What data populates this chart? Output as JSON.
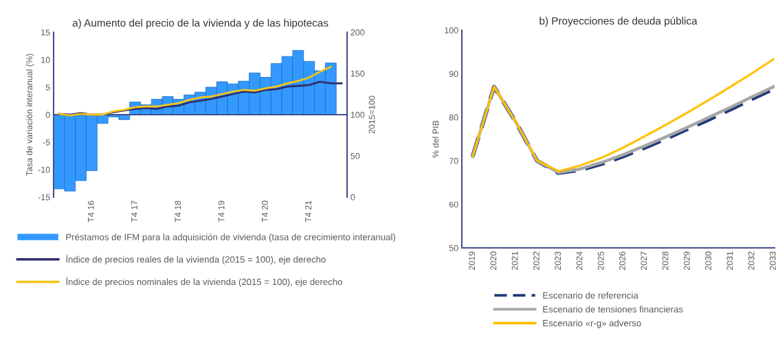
{
  "chart_data": [
    {
      "type": "bar",
      "title": "a) Aumento del precio de la vivienda y de las hipotecas",
      "ylabel": "Tasa de variación interanual (%)",
      "y2label": "2015=100",
      "categories": [
        null,
        null,
        null,
        "T4 16",
        null,
        null,
        null,
        "T4 17",
        null,
        null,
        null,
        "T4 18",
        null,
        null,
        null,
        "T4 19",
        null,
        null,
        null,
        "T4 20",
        null,
        null,
        null,
        "T4 21",
        null,
        null,
        null
      ],
      "series": [
        {
          "name": "Préstamos de IFM para la adquisición de vivienda (tasa de crecimiento interanual)",
          "type": "bar",
          "color": "#3399ff",
          "values": [
            -13.5,
            -13.9,
            -12.0,
            -10.2,
            -1.6,
            -0.4,
            -0.9,
            2.3,
            1.8,
            2.8,
            3.3,
            2.8,
            3.6,
            4.1,
            5.0,
            6.0,
            5.6,
            6.1,
            7.6,
            6.8,
            9.3,
            10.6,
            11.7,
            9.7,
            8.0,
            9.4,
            null
          ]
        },
        {
          "name": "Índice de precios reales de la vivienda (2015 = 100), eje derecho",
          "type": "line",
          "axis": "y2",
          "color": "#2e2e6e",
          "values": [
            101,
            100,
            102,
            100,
            100,
            103,
            105,
            107,
            108,
            107,
            110,
            111,
            115,
            117,
            119,
            122,
            125,
            128,
            127,
            130,
            131,
            134,
            135,
            136,
            140,
            138,
            138
          ]
        },
        {
          "name": "Índice de precios nominales de la vivienda (2015 = 100), eje derecho",
          "type": "line",
          "axis": "y2",
          "color": "#f5c518",
          "values": [
            101,
            99,
            101,
            100,
            100,
            104,
            106,
            109,
            110,
            110,
            112,
            114,
            118,
            121,
            122,
            125,
            128,
            130,
            129,
            132,
            134,
            138,
            141,
            145,
            152,
            158,
            null
          ]
        }
      ],
      "ylim": [
        -15,
        15
      ],
      "yticks": [
        -15,
        -10,
        -5,
        0,
        5,
        10,
        15
      ],
      "y2lim": [
        0,
        200
      ],
      "y2ticks": [
        0,
        50,
        100,
        150,
        200
      ],
      "ref_lines": [
        {
          "axis": "y",
          "value": 0,
          "color": "#44508a"
        }
      ],
      "grid": false,
      "legend": "bottom"
    },
    {
      "type": "line",
      "title": "b) Proyecciones de deuda pública",
      "ylabel": "% del PIB",
      "categories": [
        "2019",
        "2020",
        "2021",
        "2022",
        "2023",
        "2024",
        "2025",
        "2026",
        "2027",
        "2028",
        "2029",
        "2030",
        "2031",
        "2032",
        "2033"
      ],
      "series": [
        {
          "name": "Escenario de referencia",
          "color": "#1f3a7a",
          "line_style": "dashed",
          "values": [
            71,
            87,
            79,
            70,
            67.2,
            67.9,
            69.3,
            71.0,
            73.0,
            75.1,
            77.3,
            79.5,
            81.8,
            84.2,
            86.5
          ]
        },
        {
          "name": "Escenario de tensiones financieras",
          "color": "#a6a6a6",
          "line_style": "solid",
          "values": [
            71,
            87,
            79,
            70,
            67.3,
            68.1,
            69.6,
            71.4,
            73.4,
            75.5,
            77.7,
            80.0,
            82.3,
            84.7,
            87.0
          ]
        },
        {
          "name": "Escenario «r-g» adverso",
          "color": "#ffc000",
          "line_style": "solid",
          "values": [
            71,
            87,
            79,
            70.1,
            67.6,
            68.9,
            70.7,
            73.0,
            75.6,
            78.3,
            81.1,
            84.0,
            87.0,
            90.1,
            93.3
          ]
        }
      ],
      "ylim": [
        50,
        100
      ],
      "yticks": [
        50,
        60,
        70,
        80,
        90,
        100
      ],
      "grid": false,
      "legend": "bottom"
    }
  ]
}
